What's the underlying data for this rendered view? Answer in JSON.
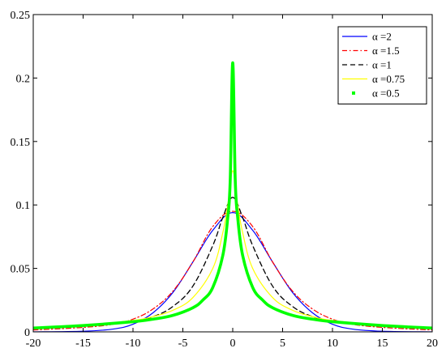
{
  "chart_data": {
    "type": "line",
    "title": "",
    "xlabel": "",
    "ylabel": "",
    "xlim": [
      -20,
      20
    ],
    "ylim": [
      0,
      0.25
    ],
    "x_ticks": [
      -20,
      -15,
      -10,
      -5,
      0,
      5,
      10,
      15,
      20
    ],
    "x_tick_labels": [
      "-20",
      "-15",
      "-10",
      "-5",
      "0",
      "5",
      "10",
      "15",
      "20"
    ],
    "y_ticks": [
      0,
      0.05,
      0.1,
      0.15,
      0.2,
      0.25
    ],
    "y_tick_labels": [
      "0",
      "0.05",
      "0.1",
      "0.15",
      "0.2",
      "0.25"
    ],
    "grid": false,
    "legend_position": "top-right",
    "series": [
      {
        "name": "α =2",
        "color": "#0000ff",
        "style": "solid",
        "x": [
          -20,
          -15,
          -12,
          -10,
          -8,
          -6,
          -4,
          -2,
          0,
          2,
          4,
          6,
          8,
          10,
          12,
          15,
          20
        ],
        "y": [
          0.0,
          0.0005,
          0.0022,
          0.006,
          0.015,
          0.031,
          0.055,
          0.08,
          0.094,
          0.08,
          0.055,
          0.031,
          0.015,
          0.006,
          0.0022,
          0.0005,
          0.0
        ]
      },
      {
        "name": "α =1.5",
        "color": "#ff0000",
        "style": "dashdot",
        "x": [
          -20,
          -15,
          -12,
          -10,
          -8,
          -6,
          -4,
          -2,
          0,
          2,
          4,
          6,
          8,
          10,
          12,
          15,
          20
        ],
        "y": [
          0.0015,
          0.0035,
          0.006,
          0.01,
          0.018,
          0.032,
          0.055,
          0.083,
          0.095,
          0.083,
          0.055,
          0.032,
          0.018,
          0.01,
          0.006,
          0.0035,
          0.0015
        ]
      },
      {
        "name": "α =1",
        "color": "#000000",
        "style": "dashed",
        "x": [
          -20,
          -15,
          -12,
          -10,
          -8,
          -6,
          -4,
          -2,
          -1,
          0,
          1,
          2,
          4,
          6,
          8,
          10,
          12,
          15,
          20
        ],
        "y": [
          0.0025,
          0.0045,
          0.0065,
          0.0085,
          0.012,
          0.02,
          0.036,
          0.068,
          0.09,
          0.106,
          0.09,
          0.068,
          0.036,
          0.02,
          0.012,
          0.0085,
          0.0065,
          0.0045,
          0.0025
        ]
      },
      {
        "name": "α =0.75",
        "color": "#ffff00",
        "style": "solid",
        "x": [
          -20,
          -15,
          -10,
          -8,
          -6,
          -4,
          -2,
          -1,
          -0.5,
          0,
          0.5,
          1,
          2,
          4,
          6,
          8,
          10,
          15,
          20
        ],
        "y": [
          0.003,
          0.005,
          0.009,
          0.012,
          0.017,
          0.027,
          0.05,
          0.078,
          0.1,
          0.127,
          0.1,
          0.078,
          0.05,
          0.027,
          0.017,
          0.012,
          0.009,
          0.005,
          0.003
        ]
      },
      {
        "name": "α =0.5",
        "color": "#00ff00",
        "style": "thick-dotted",
        "x": [
          -20,
          -15,
          -10,
          -8,
          -6,
          -4,
          -3,
          -2,
          -1,
          -0.5,
          -0.25,
          0,
          0.25,
          0.5,
          1,
          2,
          3,
          4,
          6,
          8,
          10,
          15,
          20
        ],
        "y": [
          0.003,
          0.005,
          0.008,
          0.01,
          0.013,
          0.019,
          0.025,
          0.035,
          0.06,
          0.09,
          0.12,
          0.212,
          0.12,
          0.09,
          0.06,
          0.035,
          0.025,
          0.019,
          0.013,
          0.01,
          0.008,
          0.005,
          0.003
        ]
      }
    ]
  }
}
